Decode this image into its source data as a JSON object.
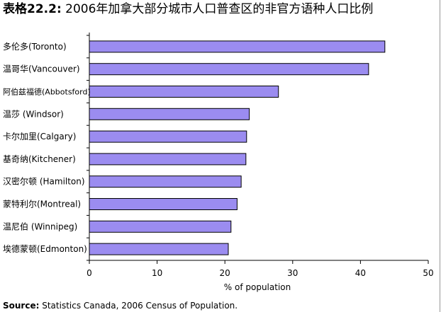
{
  "title_label": "表格22.2:",
  "title_text": "2006年加拿大部分城市人口普查区的非官方语种人口比例",
  "source_label": "Source:",
  "source_text": "Statistics Canada, 2006 Census of Population.",
  "chart_data": {
    "type": "bar",
    "orientation": "horizontal",
    "categories": [
      "多伦多(Toronto)",
      "温哥华(Vancouver)",
      "阿伯兹福德(Abbotsford)",
      "温莎 (Windsor)",
      "卡尔加里(Calgary)",
      "基奇纳(Kitchener)",
      "汉密尔顿 (Hamilton)",
      "蒙特利尔(Montreal)",
      "温尼伯 (Winnipeg)",
      "埃德蒙顿(Edmonton)"
    ],
    "values": [
      43.6,
      41.2,
      27.9,
      23.6,
      23.2,
      23.1,
      22.4,
      21.8,
      20.9,
      20.5
    ],
    "xlabel": "% of population",
    "ylabel": "",
    "xlim": [
      0,
      50
    ],
    "xticks": [
      0,
      10,
      20,
      30,
      40,
      50
    ],
    "bar_color": "#9b8cf0",
    "bar_edge_color": "#000000",
    "grid": false
  }
}
